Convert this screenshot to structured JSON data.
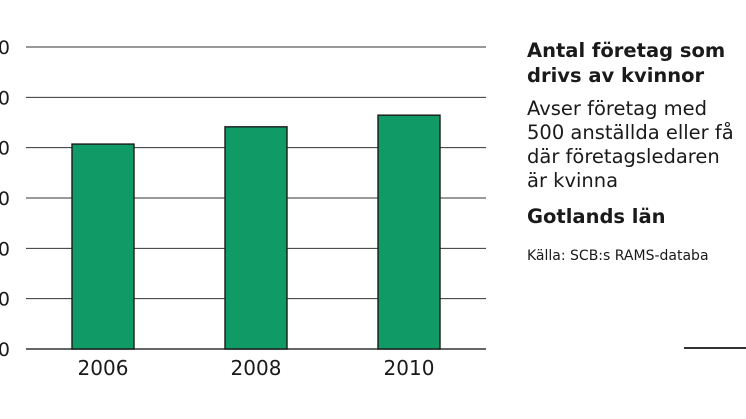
{
  "chart_data": {
    "type": "bar",
    "categories": [
      "2006",
      "2008",
      "2010"
    ],
    "values": [
      47.5,
      51.5,
      54.2
    ],
    "ylim": [
      0,
      70
    ],
    "y_ticks": [
      "0",
      "0",
      "0",
      "0",
      "0",
      "0",
      "0"
    ],
    "grid": true,
    "legend": "none",
    "bar_color": "#0f9a66",
    "title": "Antal företag som drivs av kvinnor",
    "title_lines": [
      "Antal företag som",
      "drivs av kvinnor"
    ],
    "subtitle_lines": [
      "Avser företag med",
      "500 anställda eller få",
      "där företagsledaren",
      "är kvinna"
    ],
    "region": "Gotlands län",
    "source": "Källa: SCB:s RAMS-databa"
  }
}
